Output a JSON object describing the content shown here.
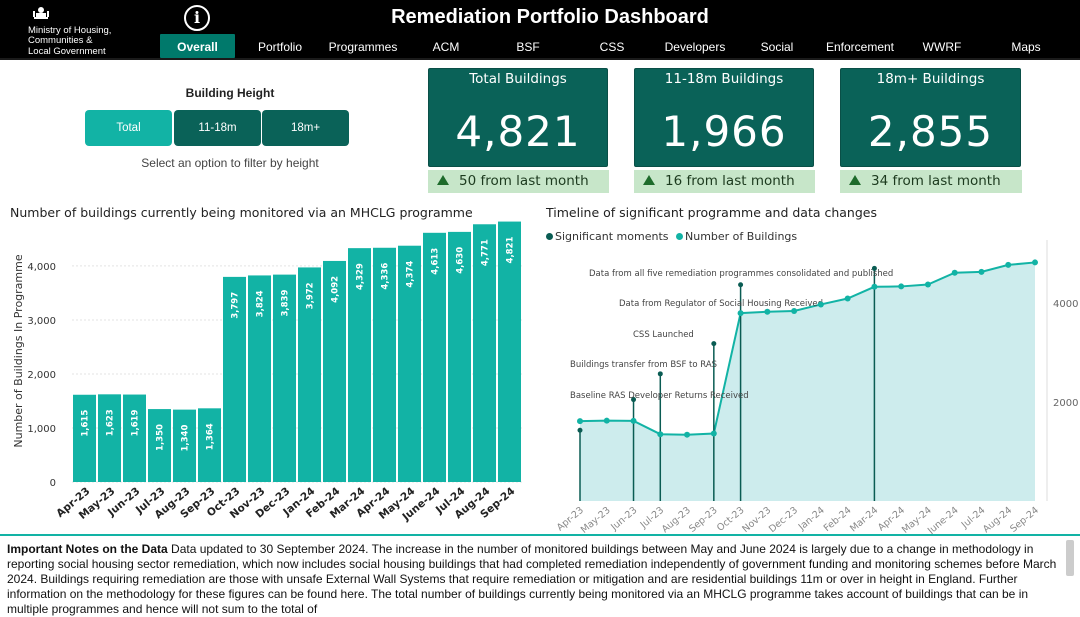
{
  "header": {
    "org_lines": [
      "Ministry of Housing,",
      "Communities &",
      "Local Government"
    ],
    "title": "Remediation Portfolio Dashboard",
    "info_label": "i",
    "tabs": [
      "Overall",
      "Portfolio",
      "Programmes",
      "ACM",
      "BSF",
      "CSS",
      "Developers",
      "Social",
      "Enforcement",
      "WWRF",
      "Maps"
    ],
    "active_tab": "Overall"
  },
  "filter": {
    "title": "Building Height",
    "options": [
      "Total",
      "11-18m",
      "18m+"
    ],
    "selected": "Total",
    "hint": "Select an option to filter by height"
  },
  "kpis": [
    {
      "title": "Total Buildings",
      "value": "4,821",
      "change": "50 from last month"
    },
    {
      "title": "11-18m Buildings",
      "value": "1,966",
      "change": "16 from last month"
    },
    {
      "title": "18m+ Buildings",
      "value": "2,855",
      "change": "34 from last month"
    }
  ],
  "colors": {
    "teal": "#12b3a5",
    "dark_teal": "#0a6258",
    "change_bg": "#c7e6c9",
    "moments": "#0a5c53",
    "area": "#cdeced"
  },
  "chart_data": [
    {
      "type": "bar",
      "title": "Number of buildings currently being monitored via an MHCLG programme",
      "xlabel": "",
      "ylabel": "Number of Buildings In Programme",
      "ylim": [
        0,
        4850
      ],
      "yticks": [
        "0",
        "1,000",
        "2,000",
        "3,000",
        "4,000"
      ],
      "categories": [
        "Apr-23",
        "May-23",
        "Jun-23",
        "Jul-23",
        "Aug-23",
        "Sep-23",
        "Oct-23",
        "Nov-23",
        "Dec-23",
        "Jan-24",
        "Feb-24",
        "Mar-24",
        "Apr-24",
        "May-24",
        "June-24",
        "Jul-24",
        "Aug-24",
        "Sep-24"
      ],
      "values": [
        1615,
        1623,
        1619,
        1350,
        1340,
        1364,
        3797,
        3824,
        3839,
        3972,
        4092,
        4329,
        4336,
        4374,
        4613,
        4630,
        4771,
        4821
      ],
      "value_labels": [
        "1,615",
        "1,623",
        "1,619",
        "1,350",
        "1,340",
        "1,364",
        "3,797",
        "3,824",
        "3,839",
        "3,972",
        "4,092",
        "4,329",
        "4,336",
        "4,374",
        "4,613",
        "4,630",
        "4,771",
        "4,821"
      ]
    },
    {
      "type": "line",
      "title": "Timeline of significant programme and data changes",
      "legend": [
        "Significant moments",
        "Number of Buildings"
      ],
      "ylim": [
        0,
        4850
      ],
      "yticks": [
        "2000",
        "4000"
      ],
      "ytick_values": [
        2000,
        4000
      ],
      "categories": [
        "Apr-23",
        "May-23",
        "Jun-23",
        "Jul-23",
        "Aug-23",
        "Sep-23",
        "Oct-23",
        "Nov-23",
        "Dec-23",
        "Jan-24",
        "Feb-24",
        "Mar-24",
        "Apr-24",
        "May-24",
        "June-24",
        "Jul-24",
        "Aug-24",
        "Sep-24"
      ],
      "values": [
        1615,
        1623,
        1619,
        1350,
        1340,
        1364,
        3797,
        3824,
        3839,
        3972,
        4092,
        4329,
        4336,
        4374,
        4613,
        4630,
        4771,
        4821
      ],
      "moments": [
        {
          "at": 0,
          "text": "Baseline RAS Developer Returns Received",
          "top": 1430
        },
        {
          "at": 2,
          "text": "Buildings transfer from BSF to RAS",
          "top": 2050
        },
        {
          "at": 3,
          "text": "",
          "top": 2570
        },
        {
          "at": 5,
          "text": "CSS Launched",
          "top": 3180
        },
        {
          "at": 6,
          "text": "Data from Regulator of Social Housing Received",
          "top": 4370
        },
        {
          "at": 11,
          "text": "Data from all five remediation programmes consolidated and published",
          "top": 4700
        }
      ]
    }
  ],
  "notes": {
    "heading": "Important Notes on the Data",
    "text": "Data updated to 30 September 2024. The increase in the number of monitored buildings between May and June 2024 is largely due to a change in methodology in reporting social housing sector remediation, which now includes social housing buildings that had completed remediation independently of government funding and monitoring schemes before March 2024. Buildings requiring remediation are those with unsafe External Wall Systems that require remediation or mitigation and are residential buildings 11m or over in height in England. Further information on the methodology for these figures can be found here. The total number of buildings currently being monitored via an MHCLG programme takes account of buildings that can be in multiple programmes and hence will not sum to the total of"
  }
}
